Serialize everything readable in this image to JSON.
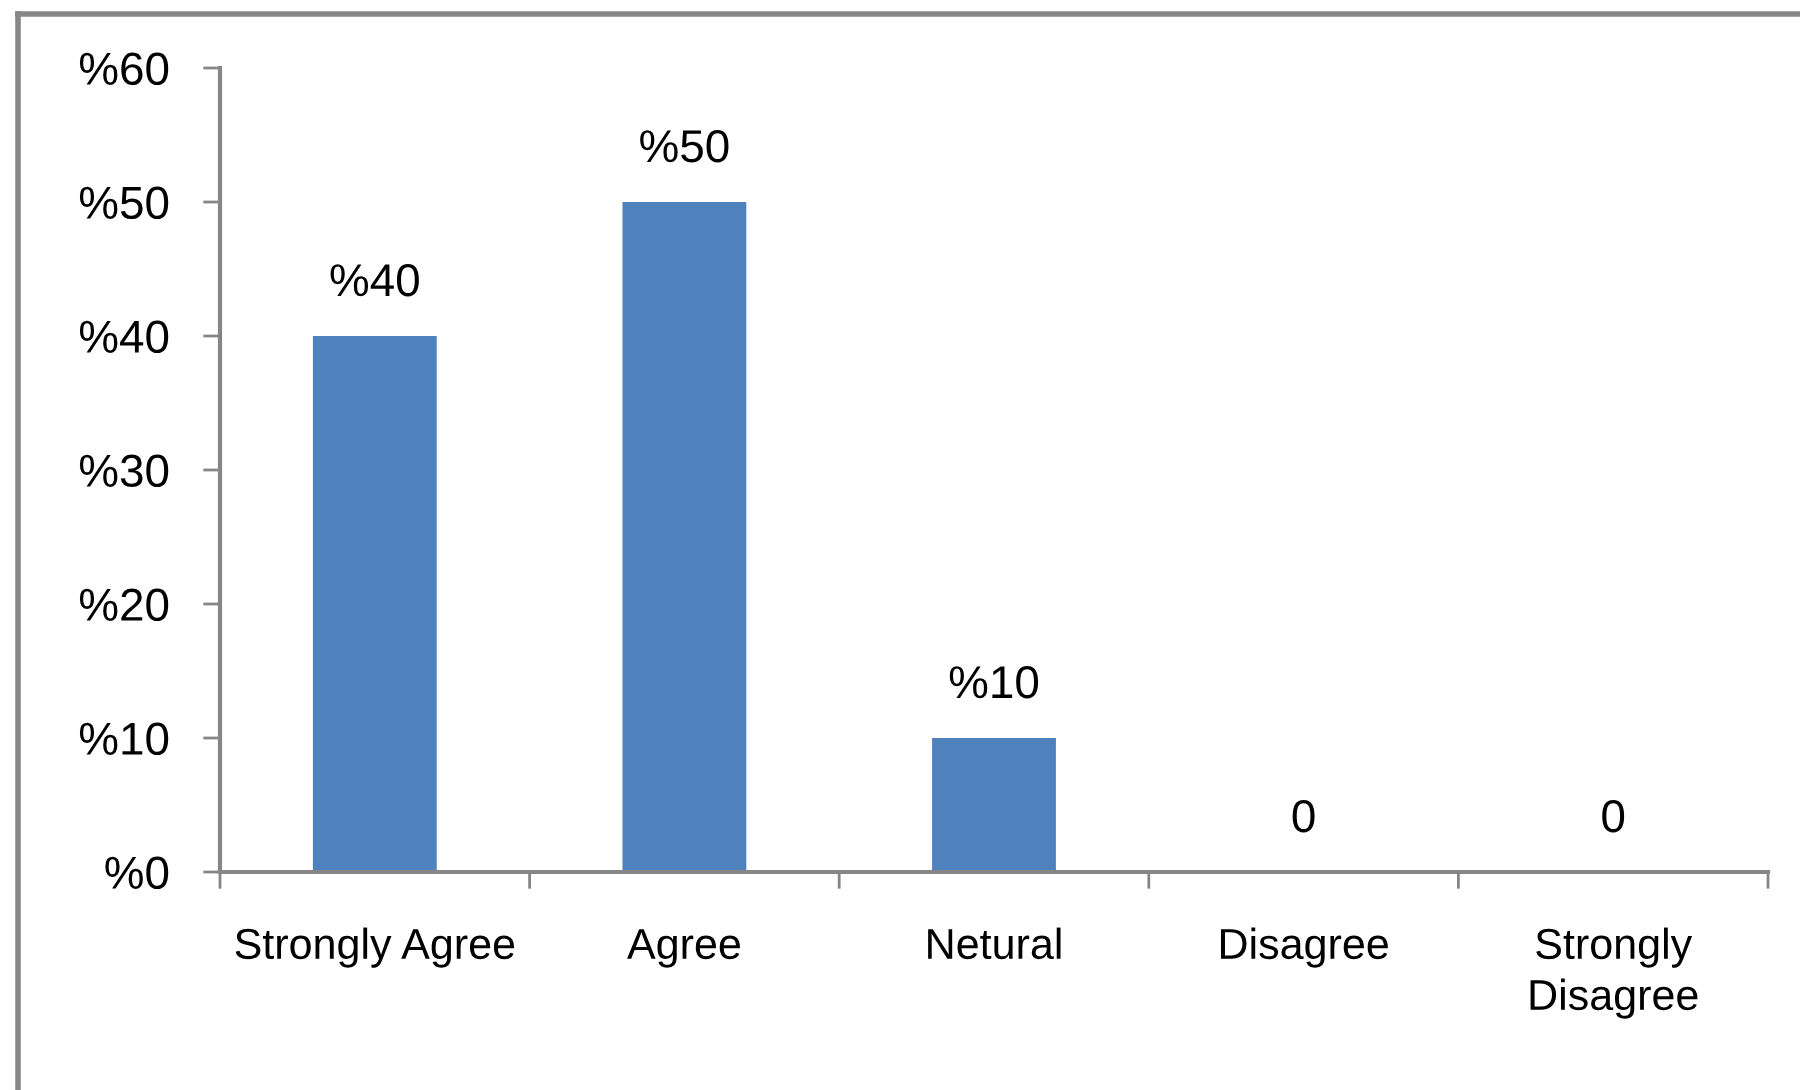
{
  "chart_data": {
    "type": "bar",
    "categories": [
      "Strongly Agree",
      "Agree",
      "Netural",
      "Disagree",
      "Strongly Disagree"
    ],
    "values": [
      40,
      50,
      10,
      0,
      0
    ],
    "value_labels": [
      "%40",
      "%50",
      "%10",
      "0",
      "0"
    ],
    "color": "#4f81bd",
    "ylim": [
      0,
      60
    ],
    "yticks": [
      {
        "value": 0,
        "label": "%0"
      },
      {
        "value": 10,
        "label": "%10"
      },
      {
        "value": 20,
        "label": "%20"
      },
      {
        "value": 30,
        "label": "%30"
      },
      {
        "value": 40,
        "label": "%40"
      },
      {
        "value": 50,
        "label": "%50"
      },
      {
        "value": 60,
        "label": "%60"
      }
    ]
  }
}
